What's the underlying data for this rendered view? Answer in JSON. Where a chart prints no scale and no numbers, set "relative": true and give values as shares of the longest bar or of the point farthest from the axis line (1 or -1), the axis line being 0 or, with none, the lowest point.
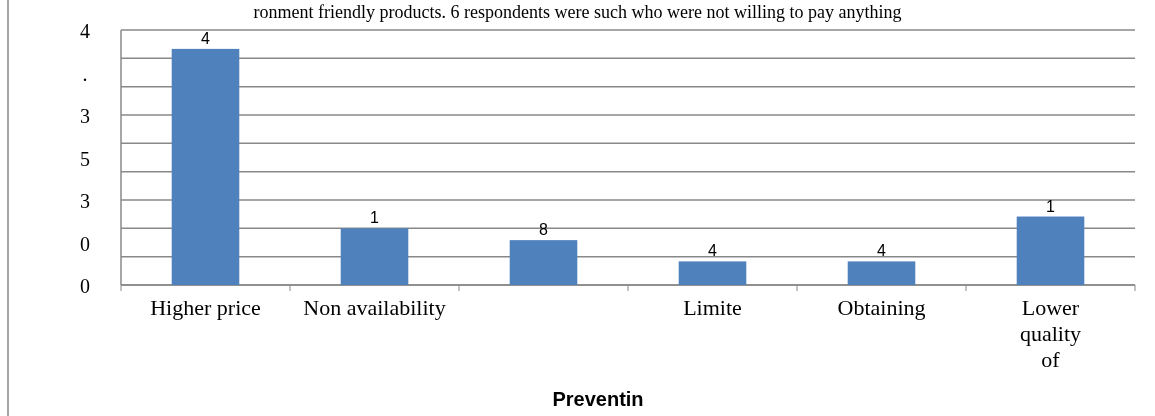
{
  "chart_data": {
    "type": "bar",
    "relative": true,
    "xlabel": "Preventin",
    "annotations": [
      "ronment friendly products. 6 respondents were such who were not willing to pay anything",
      "4",
      ".",
      "3",
      "5",
      "3",
      "0",
      "0",
      "4",
      "1",
      "8",
      "4",
      "4",
      "1"
    ],
    "categories": [
      "Higher  price",
      "Non  availability",
      null,
      "Limite",
      "Obtaining",
      "Lower\nquality\nof"
    ],
    "values": [
      1,
      0.24,
      0.19,
      0.1,
      0.1,
      0.29
    ],
    "color": "#4f81bd",
    "grid": true
  }
}
